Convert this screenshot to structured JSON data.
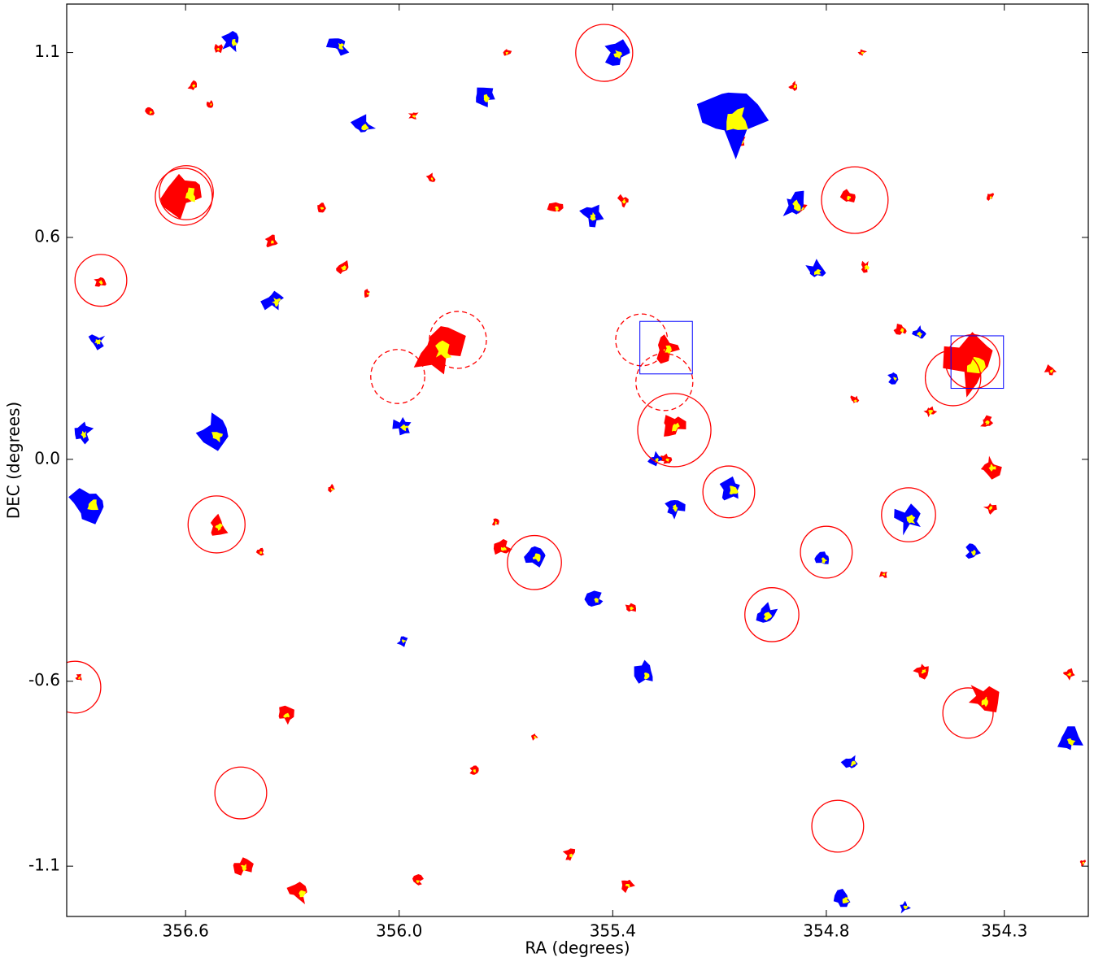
{
  "chart_data": {
    "type": "scatter",
    "xlabel": "RA (degrees)",
    "ylabel": "DEC (degrees)",
    "xlim": [
      356.934,
      354.064
    ],
    "ylim": [
      -1.236,
      1.231
    ],
    "xticks": [
      356.6,
      {
        "value": 356.0,
        "label": "356.0"
      },
      355.4,
      354.8,
      354.3
    ],
    "yticks": [
      1.1,
      0.6,
      {
        "value": 0,
        "label": "0.0"
      },
      -0.6,
      -1.1
    ],
    "highlight_color": "#ffff00",
    "series": [
      {
        "color": "#ff0000",
        "x": [
          356.51,
          356.58,
          356.53,
          356.7,
          355.7,
          355.96,
          354.89,
          354.7,
          355.04,
          355.91,
          356.6,
          356.22,
          355.37,
          355.56,
          356.36,
          356.16,
          356.09,
          356.84,
          354.69,
          354.87,
          354.74,
          354.34,
          355.89,
          355.25,
          354.39,
          354.59,
          354.17,
          354.72,
          354.51,
          354.35,
          355.23,
          354.34,
          355.25,
          354.34,
          356.19,
          356.51,
          355.73,
          355.71,
          356.39,
          354.64,
          355.35,
          354.53,
          354.36,
          354.12,
          356.32,
          355.62,
          355.79,
          356.9,
          356.44,
          356.28,
          355.95,
          355.52,
          355.36,
          354.08
        ],
        "values": [
          1.11,
          1.01,
          0.96,
          0.94,
          1.1,
          0.93,
          1.01,
          1.1,
          0.86,
          0.76,
          0.72,
          0.68,
          0.7,
          0.68,
          0.59,
          0.52,
          0.45,
          0.48,
          0.52,
          0.68,
          0.71,
          0.71,
          0.3,
          0.3,
          0.26,
          0.35,
          0.24,
          0.16,
          0.13,
          0.1,
          0.09,
          -0.02,
          0.0,
          -0.13,
          -0.08,
          -0.18,
          -0.17,
          -0.24,
          -0.25,
          -0.31,
          -0.4,
          -0.57,
          -0.65,
          -0.58,
          -0.69,
          -0.75,
          -0.84,
          -0.59,
          -1.1,
          -1.17,
          -1.14,
          -1.07,
          -1.15,
          -1.09
        ],
        "sizes": [
          0.015,
          0.015,
          0.011,
          0.015,
          0.015,
          0.015,
          0.015,
          0.013,
          0.022,
          0.015,
          0.066,
          0.015,
          0.018,
          0.022,
          0.018,
          0.022,
          0.013,
          0.018,
          0.02,
          0.018,
          0.022,
          0.013,
          0.077,
          0.044,
          0.088,
          0.02,
          0.018,
          0.015,
          0.02,
          0.02,
          0.04,
          0.033,
          0.018,
          0.018,
          0.013,
          0.033,
          0.011,
          0.026,
          0.013,
          0.013,
          0.018,
          0.024,
          0.048,
          0.018,
          0.026,
          0.013,
          0.015,
          0.011,
          0.029,
          0.037,
          0.018,
          0.02,
          0.022,
          0.011
        ]
      },
      {
        "color": "#0000ff",
        "x": [
          356.47,
          356.17,
          355.39,
          355.76,
          356.1,
          355.07,
          354.89,
          355.46,
          354.83,
          356.35,
          356.85,
          354.54,
          354.61,
          356.89,
          356.52,
          355.99,
          356.87,
          355.28,
          355.07,
          355.23,
          355.62,
          354.57,
          354.81,
          354.39,
          355.45,
          354.97,
          355.99,
          355.31,
          354.73,
          354.12,
          354.75,
          354.58
        ],
        "values": [
          1.13,
          1.12,
          1.1,
          0.98,
          0.9,
          0.93,
          0.69,
          0.66,
          0.51,
          0.43,
          0.32,
          0.34,
          0.22,
          0.07,
          0.07,
          0.09,
          -0.12,
          0.0,
          -0.08,
          -0.13,
          -0.26,
          -0.16,
          -0.27,
          -0.25,
          -0.38,
          -0.42,
          -0.49,
          -0.58,
          -0.82,
          -0.76,
          -1.19,
          -1.21
        ],
        "sizes": [
          0.033,
          0.033,
          0.04,
          0.031,
          0.037,
          0.11,
          0.044,
          0.033,
          0.031,
          0.037,
          0.026,
          0.022,
          0.02,
          0.033,
          0.055,
          0.031,
          0.055,
          0.022,
          0.044,
          0.031,
          0.04,
          0.044,
          0.026,
          0.022,
          0.026,
          0.04,
          0.018,
          0.035,
          0.026,
          0.04,
          0.029,
          0.02
        ]
      }
    ],
    "circles": {
      "color": "#ff0000",
      "x": [
        355.424,
        356.598,
        356.605,
        356.838,
        354.72,
        356.004,
        355.835,
        355.319,
        355.255,
        355.227,
        354.444,
        354.389,
        355.074,
        354.569,
        356.513,
        355.62,
        354.8,
        354.953,
        356.911,
        354.402,
        356.445,
        354.768
      ],
      "values": [
        1.099,
        0.721,
        0.71,
        0.484,
        0.701,
        0.224,
        0.323,
        0.323,
        0.209,
        0.079,
        0.22,
        0.264,
        -0.088,
        -0.15,
        -0.176,
        -0.279,
        -0.251,
        -0.42,
        -0.616,
        -0.686,
        -0.902,
        -0.992
      ],
      "radius": [
        0.077,
        0.073,
        0.077,
        0.07,
        0.09,
        0.073,
        0.077,
        0.07,
        0.077,
        0.099,
        0.075,
        0.073,
        0.07,
        0.073,
        0.077,
        0.073,
        0.07,
        0.073,
        0.07,
        0.068,
        0.07,
        0.07
      ],
      "dashed": [
        false,
        false,
        false,
        false,
        false,
        true,
        true,
        true,
        true,
        false,
        false,
        false,
        false,
        false,
        false,
        false,
        false,
        false,
        false,
        false,
        false,
        false
      ]
    },
    "squares": {
      "color": "#0000ff",
      "x": [
        355.25,
        354.376
      ],
      "values": [
        0.302,
        0.263
      ],
      "half_size": [
        0.071,
        0.071
      ]
    }
  }
}
